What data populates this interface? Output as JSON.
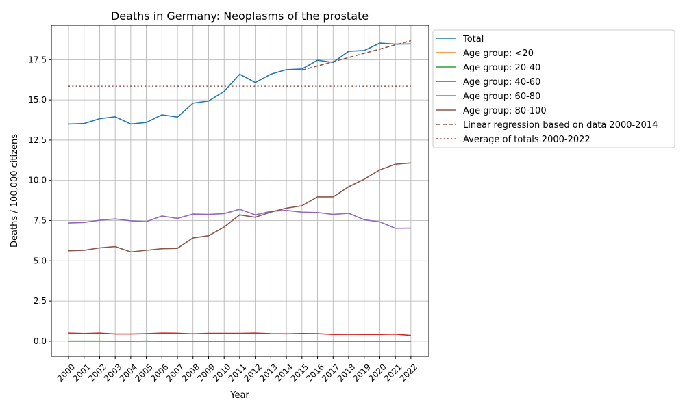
{
  "chart_data": {
    "type": "line",
    "title": "Deaths in Germany: Neoplasms of the prostate",
    "xlabel": "Year",
    "ylabel": "Deaths / 100,000 citizens",
    "x": [
      2000,
      2001,
      2002,
      2003,
      2004,
      2005,
      2006,
      2007,
      2008,
      2009,
      2010,
      2011,
      2012,
      2013,
      2014,
      2015,
      2016,
      2017,
      2018,
      2019,
      2020,
      2021,
      2022
    ],
    "xticklabels": [
      "2000",
      "2001",
      "2002",
      "2003",
      "2004",
      "2005",
      "2006",
      "2007",
      "2008",
      "2009",
      "2010",
      "2011",
      "2012",
      "2013",
      "2014",
      "2015",
      "2016",
      "2017",
      "2018",
      "2019",
      "2020",
      "2021",
      "2022"
    ],
    "yticks": [
      0.0,
      2.5,
      5.0,
      7.5,
      10.0,
      12.5,
      15.0,
      17.5
    ],
    "yticklabels": [
      "0.0",
      "2.5",
      "5.0",
      "7.5",
      "10.0",
      "12.5",
      "15.0",
      "17.5"
    ],
    "xlim": [
      1998.9,
      2023.15
    ],
    "ylim": [
      -0.94,
      19.64
    ],
    "grid": true,
    "legend_position": "outside-top-right",
    "series": [
      {
        "name": "Total",
        "color": "#1f77b4",
        "style": "solid",
        "values": [
          13.5,
          13.53,
          13.83,
          13.95,
          13.5,
          13.6,
          14.07,
          13.93,
          14.8,
          14.93,
          15.53,
          16.6,
          16.08,
          16.6,
          16.88,
          16.92,
          17.47,
          17.33,
          18.02,
          18.07,
          18.53,
          18.47,
          18.48
        ]
      },
      {
        "name": "Age group: <20",
        "color": "#ff7f0e",
        "style": "solid",
        "values": [
          0,
          0,
          0,
          0,
          0,
          0,
          0,
          0,
          0,
          0,
          0,
          0,
          0,
          0,
          0,
          0,
          0,
          0,
          0,
          0,
          0,
          0,
          0
        ]
      },
      {
        "name": "Age group: 20-40",
        "color": "#2ca02c",
        "style": "solid",
        "values": [
          0.01,
          0.01,
          0.01,
          0.0,
          0.0,
          0.01,
          0.0,
          0.0,
          0.0,
          0.0,
          0.0,
          0.0,
          0.0,
          0.0,
          0.0,
          0.0,
          0.0,
          0.0,
          0.0,
          0.0,
          0.0,
          0.0,
          0.0
        ]
      },
      {
        "name": "Age group: 40-60",
        "color": "#d62728",
        "style": "solid",
        "values": [
          0.5,
          0.47,
          0.5,
          0.44,
          0.44,
          0.46,
          0.5,
          0.49,
          0.45,
          0.48,
          0.48,
          0.48,
          0.5,
          0.46,
          0.45,
          0.47,
          0.46,
          0.41,
          0.42,
          0.41,
          0.41,
          0.43,
          0.35
        ]
      },
      {
        "name": "Age group: 60-80",
        "color": "#9467bd",
        "style": "solid",
        "values": [
          7.35,
          7.38,
          7.52,
          7.6,
          7.48,
          7.43,
          7.78,
          7.63,
          7.9,
          7.88,
          7.93,
          8.2,
          7.85,
          8.07,
          8.13,
          8.02,
          8.0,
          7.88,
          7.95,
          7.55,
          7.42,
          7.02,
          7.03
        ]
      },
      {
        "name": "Age group: 80-100",
        "color": "#8c564b",
        "style": "solid",
        "values": [
          5.62,
          5.65,
          5.8,
          5.88,
          5.55,
          5.65,
          5.75,
          5.77,
          6.42,
          6.55,
          7.1,
          7.85,
          7.7,
          8.02,
          8.27,
          8.42,
          8.97,
          8.97,
          9.6,
          10.07,
          10.65,
          11.0,
          11.08
        ]
      },
      {
        "name": "Linear regression based on data 2000-2014",
        "color": "#8c564b",
        "style": "dashed",
        "x": [
          2015,
          2022
        ],
        "values": [
          16.85,
          18.68
        ]
      },
      {
        "name": "Average of totals 2000-2022",
        "color": "#8c564b",
        "style": "dotted",
        "x": [
          2000,
          2022
        ],
        "values": [
          15.85,
          15.85
        ]
      }
    ]
  }
}
